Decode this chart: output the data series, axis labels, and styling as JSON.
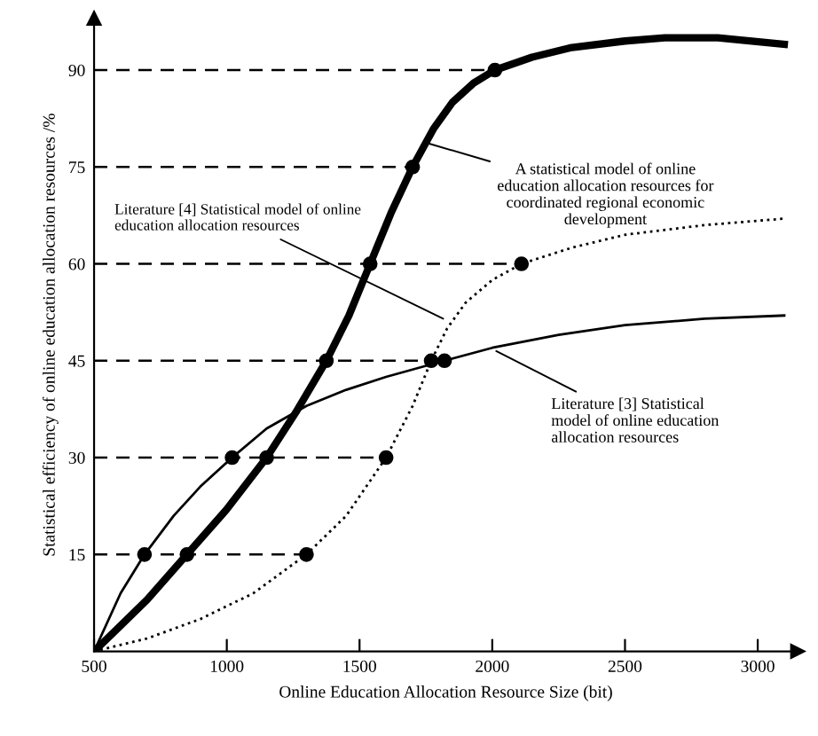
{
  "chart_data": {
    "type": "line",
    "xlabel": "Online Education Allocation Resource Size (bit)",
    "ylabel": "Statistical efficiency of online education allocation resources /%",
    "xlim": [
      500,
      3150
    ],
    "ylim": [
      0,
      98
    ],
    "xticks": [
      500,
      1000,
      1500,
      2000,
      2500,
      3000
    ],
    "yticks": [
      15,
      30,
      45,
      60,
      75,
      90
    ],
    "grid": false,
    "legend": false,
    "series": [
      {
        "color": "#000000",
        "line_style": "solid",
        "x": [
          500,
          600,
          700,
          850,
          1000,
          1150,
          1260,
          1375,
          1460,
          1540,
          1620,
          1700,
          1780,
          1850,
          1930,
          2010,
          2150,
          2300,
          2500,
          2650,
          2850,
          3100
        ],
        "values": [
          0,
          4,
          8,
          15,
          22,
          30,
          37,
          45,
          52,
          60,
          68,
          75,
          81,
          85,
          88,
          90,
          92,
          93.5,
          94.5,
          95,
          95,
          94
        ]
      },
      {
        "color": "#000000",
        "line_style": "solid",
        "x": [
          500,
          600,
          690,
          800,
          900,
          1020,
          1150,
          1300,
          1450,
          1600,
          1820,
          2000,
          2250,
          2500,
          2800,
          3100
        ],
        "values": [
          0,
          9,
          15,
          21,
          25.5,
          30,
          34.5,
          38,
          40.5,
          42.5,
          45,
          47,
          49,
          50.5,
          51.5,
          52
        ]
      },
      {
        "color": "#000000",
        "line_style": "dotted",
        "x": [
          500,
          700,
          900,
          1100,
          1300,
          1450,
          1600,
          1700,
          1770,
          1830,
          1900,
          2000,
          2110,
          2300,
          2500,
          2800,
          3100
        ],
        "values": [
          0,
          2,
          5,
          9,
          15,
          21,
          30,
          38,
          45,
          50,
          54,
          57.5,
          60,
          62.5,
          64.5,
          66,
          67
        ]
      },
      {
        "type": "scatter",
        "color": "#000000",
        "marker": "circle",
        "x": [
          850,
          1150,
          1375,
          1540,
          1700,
          2010,
          690,
          1020,
          1820,
          1300,
          1600,
          1770,
          2110
        ],
        "values": [
          15,
          30,
          45,
          60,
          75,
          90,
          15,
          30,
          45,
          15,
          30,
          45,
          60
        ]
      }
    ],
    "ref_lines": [
      {
        "axis": "y",
        "value": 15,
        "line_style": "dashed"
      },
      {
        "axis": "y",
        "value": 30,
        "line_style": "dashed"
      },
      {
        "axis": "y",
        "value": 45,
        "line_style": "dashed"
      },
      {
        "axis": "y",
        "value": 60,
        "line_style": "dashed"
      },
      {
        "axis": "y",
        "value": 75,
        "line_style": "dashed"
      },
      {
        "axis": "y",
        "value": 90,
        "line_style": "dashed"
      }
    ],
    "annotations": [
      {
        "text": "A statistical model of online\neducation allocation resources for\ncoordinated regional economic\ndevelopment",
        "x": 1730,
        "y": 79
      },
      {
        "text": "Literature [4] Statistical model of online\neducation allocation resources",
        "x": 1840,
        "y": 51
      },
      {
        "text": "Literature [3] Statistical\nmodel of online education\nallocation resources",
        "x": 1990,
        "y": 47
      }
    ]
  }
}
